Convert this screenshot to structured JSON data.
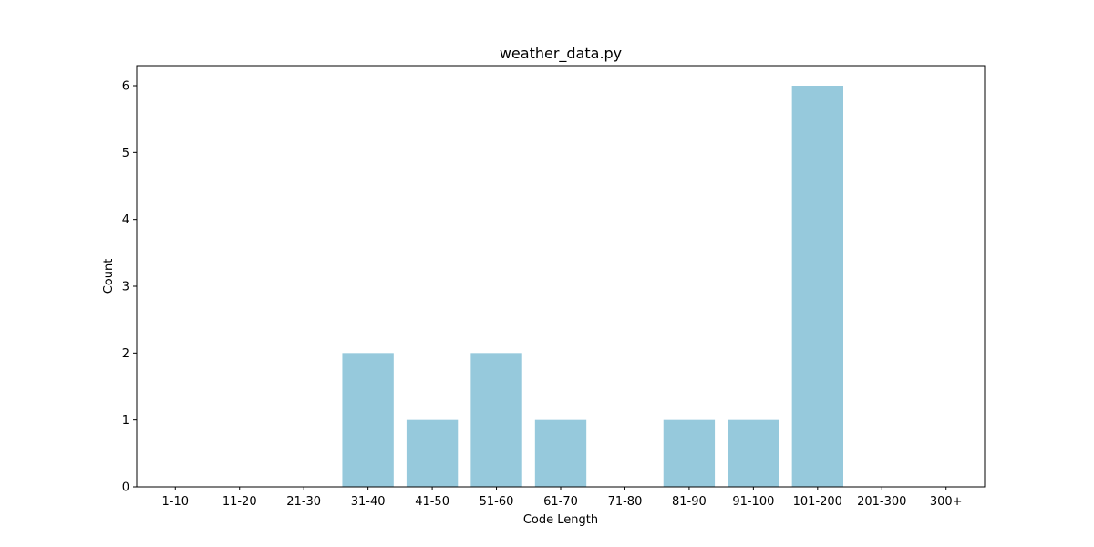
{
  "chart_data": {
    "type": "bar",
    "title": "weather_data.py",
    "xlabel": "Code Length",
    "ylabel": "Count",
    "categories": [
      "1-10",
      "11-20",
      "21-30",
      "31-40",
      "41-50",
      "51-60",
      "61-70",
      "71-80",
      "81-90",
      "91-100",
      "101-200",
      "201-300",
      "300+"
    ],
    "values": [
      0,
      0,
      0,
      2,
      1,
      2,
      1,
      0,
      1,
      1,
      6,
      0,
      0
    ],
    "ylim": [
      0,
      6.3
    ],
    "yticks": [
      0,
      1,
      2,
      3,
      4,
      5,
      6
    ],
    "grid": false,
    "bar_color": "#96c9dc"
  }
}
